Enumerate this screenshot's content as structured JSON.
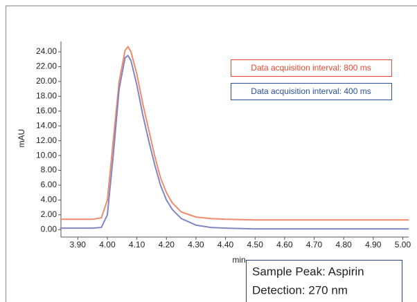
{
  "chart_data": {
    "type": "line",
    "x_label": "min",
    "y_label": "mAU",
    "x": [
      3.84,
      3.9,
      3.95,
      3.98,
      4.0,
      4.02,
      4.04,
      4.06,
      4.07,
      4.08,
      4.1,
      4.12,
      4.14,
      4.16,
      4.18,
      4.2,
      4.22,
      4.25,
      4.3,
      4.35,
      4.4,
      4.5,
      4.6,
      4.8,
      5.0,
      5.02
    ],
    "series": [
      {
        "name": "Data acquisition interval: 800 ms",
        "color": "#e8472f",
        "line_color": "#f08a6a",
        "values": [
          1.4,
          1.4,
          1.4,
          1.6,
          4,
          12,
          20,
          24.2,
          24.7,
          24,
          21,
          17,
          13.5,
          10,
          7,
          5,
          3.6,
          2.4,
          1.7,
          1.5,
          1.4,
          1.3,
          1.3,
          1.3,
          1.3,
          1.3
        ]
      },
      {
        "name": "Data acquisition interval: 400 ms",
        "color": "#2a4f9e",
        "line_color": "#7f86c4",
        "values": [
          0.2,
          0.2,
          0.2,
          0.3,
          2,
          10,
          19,
          23.2,
          23.5,
          22.8,
          19.5,
          15.5,
          12,
          8.8,
          6,
          4,
          2.7,
          1.5,
          0.6,
          0.3,
          0.2,
          0.1,
          0.1,
          0.1,
          0.1,
          0.1
        ]
      }
    ],
    "xlim": [
      3.843,
      5.02
    ],
    "ylim": [
      -1.0,
      25.4
    ],
    "xticks": [
      {
        "value": 3.9,
        "label": "3.90"
      },
      {
        "value": 4.0,
        "label": "4.00"
      },
      {
        "value": 4.1,
        "label": "4.10"
      },
      {
        "value": 4.2,
        "label": "4.20"
      },
      {
        "value": 4.3,
        "label": "4.30"
      },
      {
        "value": 4.4,
        "label": "4.40"
      },
      {
        "value": 4.5,
        "label": "4.50"
      },
      {
        "value": 4.6,
        "label": "4.60"
      },
      {
        "value": 4.7,
        "label": "4.70"
      },
      {
        "value": 4.8,
        "label": "4.80"
      },
      {
        "value": 4.9,
        "label": "4.90"
      },
      {
        "value": 5.0,
        "label": "5.00"
      }
    ],
    "yticks": [
      {
        "value": 0,
        "label": "0.00"
      },
      {
        "value": 2,
        "label": "2.00"
      },
      {
        "value": 4,
        "label": "4.00"
      },
      {
        "value": 6,
        "label": "6.00"
      },
      {
        "value": 8,
        "label": "8.00"
      },
      {
        "value": 10,
        "label": "10.00"
      },
      {
        "value": 12,
        "label": "12.00"
      },
      {
        "value": 14,
        "label": "14.00"
      },
      {
        "value": 16,
        "label": "16.00"
      },
      {
        "value": 18,
        "label": "18.00"
      },
      {
        "value": 20,
        "label": "20.00"
      },
      {
        "value": 22,
        "label": "22.00"
      },
      {
        "value": 24,
        "label": "24.00"
      }
    ],
    "annotations": [
      "Sample Peak: Aspirin",
      "Detection: 270 nm"
    ]
  }
}
